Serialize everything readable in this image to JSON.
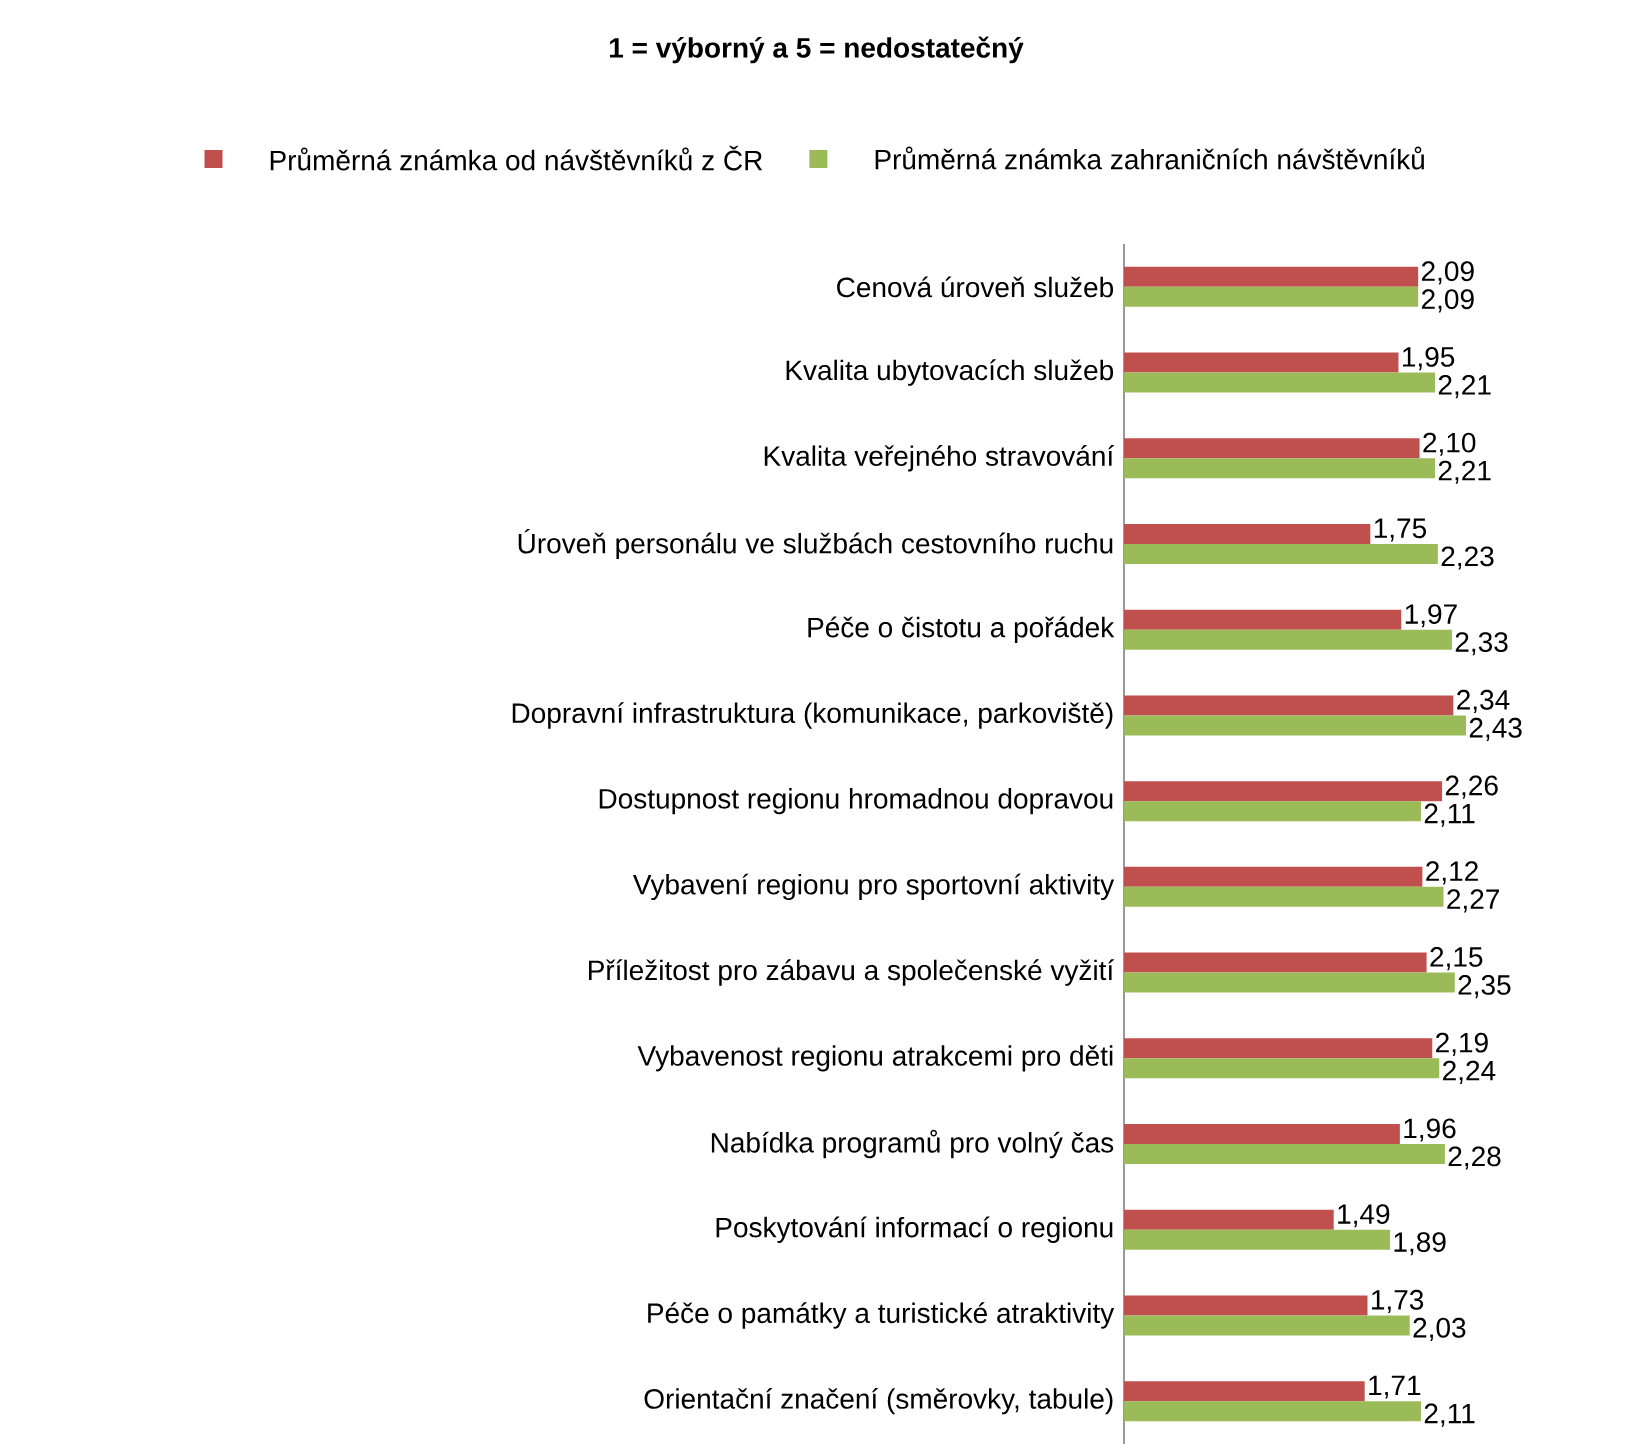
{
  "chart_data": {
    "type": "bar",
    "orientation": "horizontal",
    "title": "1 = výborný a 5 = nedostatečný",
    "categories": [
      "Cenová úroveň služeb",
      "Kvalita ubytovacích služeb",
      "Kvalita veřejného stravování",
      "Úroveň personálu ve službách cestovního ruchu",
      "Péče o čistotu a pořádek",
      "Dopravní infrastruktura (komunikace, parkoviště)",
      "Dostupnost  regionu hromadnou dopravou",
      "Vybavení regionu pro sportovní aktivity",
      "Příležitost pro zábavu a společenské vyžití",
      "Vybavenost regionu atrakcemi pro děti",
      "Nabídka programů pro volný čas",
      "Poskytování  informací o regionu",
      "Péče o památky a turistické atraktivity",
      "Orientační značení (směrovky, tabule)"
    ],
    "series": [
      {
        "name": "Průměrná známka od návštěvníků  z ČR",
        "color": "#c0504d",
        "values": [
          2.09,
          1.95,
          2.1,
          1.75,
          1.97,
          2.34,
          2.26,
          2.12,
          2.15,
          2.19,
          1.96,
          1.49,
          1.73,
          1.71
        ],
        "value_labels": [
          "2,09",
          "1,95",
          "2,10",
          "1,75",
          "1,97",
          "2,34",
          "2,26",
          "2,12",
          "2,15",
          "2,19",
          "1,96",
          "1,49",
          "1,73",
          "1,71"
        ]
      },
      {
        "name": "Průměrná známka zahraničních návštěvníků",
        "color": "#9bbb59",
        "values": [
          2.09,
          2.21,
          2.21,
          2.23,
          2.33,
          2.43,
          2.11,
          2.27,
          2.35,
          2.24,
          2.28,
          1.89,
          2.03,
          2.11
        ],
        "value_labels": [
          "2,09",
          "2,21",
          "2,21",
          "2,23",
          "2,33",
          "2,43",
          "2,11",
          "2,27",
          "2,35",
          "2,24",
          "2,28",
          "1,89",
          "2,03",
          "2,11"
        ]
      }
    ],
    "tick_labels": "y",
    "legend": "top"
  }
}
